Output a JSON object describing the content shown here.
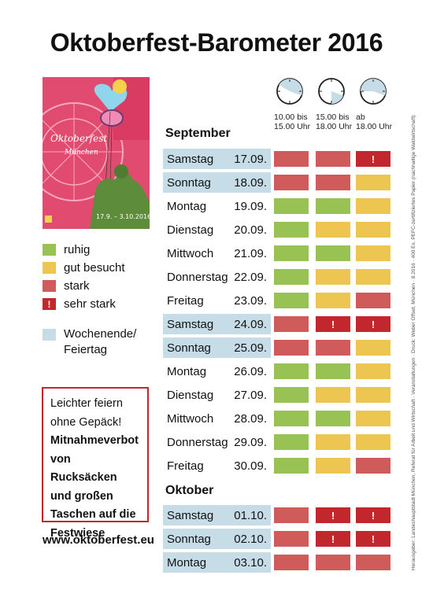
{
  "title": "Oktoberfest-Barometer 2016",
  "poster": {
    "line1": "Oktoberfest",
    "line2": "München",
    "dates": "17.9. – 3.10.2016"
  },
  "legend": [
    {
      "label": "ruhig",
      "level": "green"
    },
    {
      "label": "gut besucht",
      "level": "yellow"
    },
    {
      "label": "stark",
      "level": "red"
    },
    {
      "label": "sehr stark",
      "level": "vred",
      "mark": "!"
    }
  ],
  "weekend_legend": {
    "line1": "Wochenende/",
    "line2": "Feiertag"
  },
  "notice": {
    "line1": "Leichter feiern",
    "line2": "ohne Gepäck!",
    "bold1": "Mitnahmeverbot",
    "bold2": "von Rucksäcken",
    "bold3": "und großen",
    "bold4": "Taschen auf die",
    "bold5": "Festwiese"
  },
  "url": "www.oktoberfest.eu",
  "time_slots": [
    {
      "line1": "10.00 bis",
      "line2": "15.00 Uhr"
    },
    {
      "line1": "15.00 bis",
      "line2": "18.00 Uhr"
    },
    {
      "line1": "ab",
      "line2": "18.00 Uhr"
    }
  ],
  "months": [
    "September",
    "Oktober"
  ],
  "days": [
    {
      "name": "Samstag",
      "date": "17.09.",
      "weekend": true,
      "levels": [
        "red",
        "red",
        "vred"
      ]
    },
    {
      "name": "Sonntag",
      "date": "18.09.",
      "weekend": true,
      "levels": [
        "red",
        "red",
        "yellow"
      ]
    },
    {
      "name": "Montag",
      "date": "19.09.",
      "weekend": false,
      "levels": [
        "green",
        "green",
        "yellow"
      ]
    },
    {
      "name": "Dienstag",
      "date": "20.09.",
      "weekend": false,
      "levels": [
        "green",
        "yellow",
        "yellow"
      ]
    },
    {
      "name": "Mittwoch",
      "date": "21.09.",
      "weekend": false,
      "levels": [
        "green",
        "green",
        "yellow"
      ]
    },
    {
      "name": "Donnerstag",
      "date": "22.09.",
      "weekend": false,
      "levels": [
        "green",
        "yellow",
        "yellow"
      ]
    },
    {
      "name": "Freitag",
      "date": "23.09.",
      "weekend": false,
      "levels": [
        "green",
        "yellow",
        "red"
      ]
    },
    {
      "name": "Samstag",
      "date": "24.09.",
      "weekend": true,
      "levels": [
        "red",
        "vred",
        "vred"
      ]
    },
    {
      "name": "Sonntag",
      "date": "25.09.",
      "weekend": true,
      "levels": [
        "red",
        "red",
        "yellow"
      ]
    },
    {
      "name": "Montag",
      "date": "26.09.",
      "weekend": false,
      "levels": [
        "green",
        "green",
        "yellow"
      ]
    },
    {
      "name": "Dienstag",
      "date": "27.09.",
      "weekend": false,
      "levels": [
        "green",
        "yellow",
        "yellow"
      ]
    },
    {
      "name": "Mittwoch",
      "date": "28.09.",
      "weekend": false,
      "levels": [
        "green",
        "green",
        "yellow"
      ]
    },
    {
      "name": "Donnerstag",
      "date": "29.09.",
      "weekend": false,
      "levels": [
        "green",
        "yellow",
        "yellow"
      ]
    },
    {
      "name": "Freitag",
      "date": "30.09.",
      "weekend": false,
      "levels": [
        "green",
        "yellow",
        "red"
      ]
    },
    {
      "name": "Samstag",
      "date": "01.10.",
      "weekend": true,
      "levels": [
        "red",
        "vred",
        "vred"
      ]
    },
    {
      "name": "Sonntag",
      "date": "02.10.",
      "weekend": true,
      "levels": [
        "red",
        "vred",
        "vred"
      ]
    },
    {
      "name": "Montag",
      "date": "03.10.",
      "weekend": true,
      "levels": [
        "red",
        "red",
        "red"
      ]
    }
  ],
  "colors": {
    "green": "#99c255",
    "yellow": "#ecc650",
    "red": "#cf5b5b",
    "vred": "#c2272d",
    "weekend": "#c6dde8"
  },
  "side_note": "Herausgeber: Landeshauptstadt München, Referat für Arbeit und Wirtschaft · Veranstaltungen · Druck: Weber Offset, München · 8.2016 · 400 Ex. PEFC-zertifiziertes Papier (nachhaltige Waldwirtschaft)"
}
